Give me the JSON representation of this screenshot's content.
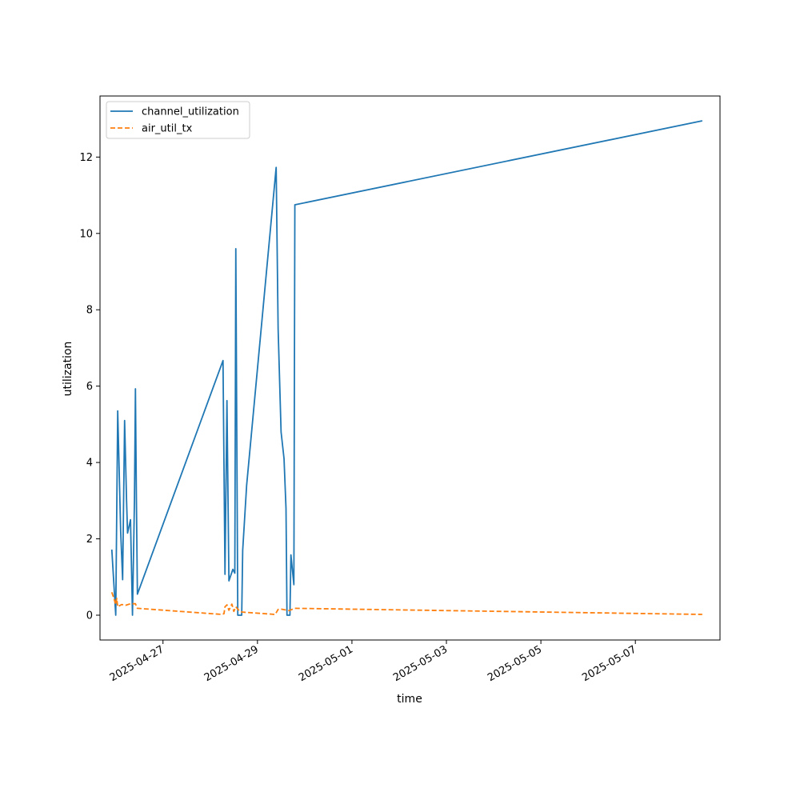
{
  "chart_data": {
    "type": "line",
    "xlabel": "time",
    "ylabel": "utilization",
    "x_type": "datetime",
    "xlim": [
      "2025-04-25T16:00:00",
      "2025-05-08T19:00:00"
    ],
    "ylim": [
      -0.65,
      13.6
    ],
    "x_ticks": [
      "2025-04-27",
      "2025-04-29",
      "2025-05-01",
      "2025-05-03",
      "2025-05-05",
      "2025-05-07"
    ],
    "y_ticks": [
      0,
      2,
      4,
      6,
      8,
      10,
      12
    ],
    "grid": false,
    "legend_position": "upper-left",
    "series": [
      {
        "name": "channel_utilization",
        "color": "#1f77b4",
        "dash": "solid",
        "points": [
          [
            "2025-04-25T22:00:00",
            1.72
          ],
          [
            "2025-04-26T00:00:00",
            0.0
          ],
          [
            "2025-04-26T01:00:00",
            5.35
          ],
          [
            "2025-04-26T02:30:00",
            2.2
          ],
          [
            "2025-04-26T03:30:00",
            0.93
          ],
          [
            "2025-04-26T04:30:00",
            5.1
          ],
          [
            "2025-04-26T05:30:00",
            3.0
          ],
          [
            "2025-04-26T06:00:00",
            2.15
          ],
          [
            "2025-04-26T07:30:00",
            2.5
          ],
          [
            "2025-04-26T08:30:00",
            0.0
          ],
          [
            "2025-04-26T09:30:00",
            3.0
          ],
          [
            "2025-04-26T10:00:00",
            5.93
          ],
          [
            "2025-04-26T10:30:00",
            3.0
          ],
          [
            "2025-04-26T11:00:00",
            0.55
          ],
          [
            "2025-04-28T06:30:00",
            6.67
          ],
          [
            "2025-04-28T07:30:00",
            1.07
          ],
          [
            "2025-04-28T08:30:00",
            5.62
          ],
          [
            "2025-04-28T09:30:00",
            0.9
          ],
          [
            "2025-04-28T11:30:00",
            1.2
          ],
          [
            "2025-04-28T12:30:00",
            1.1
          ],
          [
            "2025-04-28T13:00:00",
            9.6
          ],
          [
            "2025-04-28T14:00:00",
            0.0
          ],
          [
            "2025-04-28T16:00:00",
            0.0
          ],
          [
            "2025-04-28T16:30:00",
            1.7
          ],
          [
            "2025-04-28T18:30:00",
            3.4
          ],
          [
            "2025-04-29T09:30:00",
            11.73
          ],
          [
            "2025-04-29T10:30:00",
            7.5
          ],
          [
            "2025-04-29T12:00:00",
            4.8
          ],
          [
            "2025-04-29T13:30:00",
            4.1
          ],
          [
            "2025-04-29T14:30:00",
            2.8
          ],
          [
            "2025-04-29T15:00:00",
            0.0
          ],
          [
            "2025-04-29T16:30:00",
            0.0
          ],
          [
            "2025-04-29T17:00:00",
            1.58
          ],
          [
            "2025-04-29T18:30:00",
            0.8
          ],
          [
            "2025-04-29T19:00:00",
            10.75
          ],
          [
            "2025-05-08T10:00:00",
            12.95
          ]
        ]
      },
      {
        "name": "air_util_tx",
        "color": "#ff7f0e",
        "dash": "dashed",
        "points": [
          [
            "2025-04-25T22:00:00",
            0.6
          ],
          [
            "2025-04-25T23:00:00",
            0.45
          ],
          [
            "2025-04-26T00:00:00",
            0.28
          ],
          [
            "2025-04-26T00:30:00",
            0.44
          ],
          [
            "2025-04-26T01:00:00",
            0.22
          ],
          [
            "2025-04-26T03:00:00",
            0.28
          ],
          [
            "2025-04-26T05:00:00",
            0.26
          ],
          [
            "2025-04-26T07:30:00",
            0.3
          ],
          [
            "2025-04-26T10:00:00",
            0.3
          ],
          [
            "2025-04-26T11:00:00",
            0.18
          ],
          [
            "2025-04-28T06:00:00",
            0.02
          ],
          [
            "2025-04-28T07:00:00",
            0.04
          ],
          [
            "2025-04-28T07:30:00",
            0.22
          ],
          [
            "2025-04-28T08:30:00",
            0.27
          ],
          [
            "2025-04-28T09:30:00",
            0.13
          ],
          [
            "2025-04-28T11:00:00",
            0.29
          ],
          [
            "2025-04-28T12:00:00",
            0.1
          ],
          [
            "2025-04-28T13:00:00",
            0.22
          ],
          [
            "2025-04-28T15:00:00",
            0.1
          ],
          [
            "2025-04-28T16:30:00",
            0.08
          ],
          [
            "2025-04-29T09:00:00",
            0.02
          ],
          [
            "2025-04-29T10:30:00",
            0.15
          ],
          [
            "2025-04-29T12:00:00",
            0.16
          ],
          [
            "2025-04-29T16:00:00",
            0.12
          ],
          [
            "2025-04-29T19:00:00",
            0.18
          ],
          [
            "2025-05-08T10:00:00",
            0.02
          ]
        ]
      }
    ]
  }
}
